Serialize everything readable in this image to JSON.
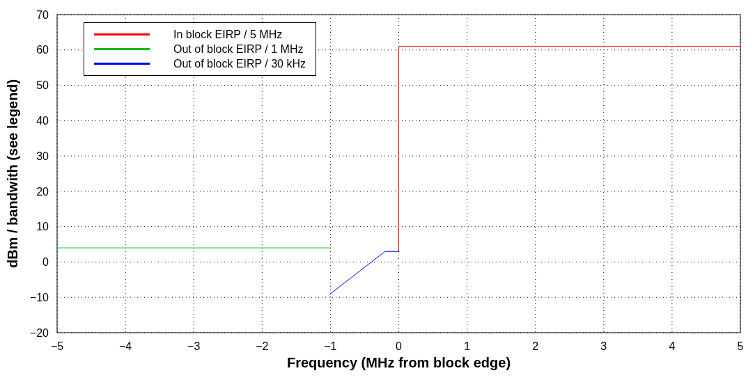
{
  "chart_data": {
    "type": "line",
    "xlabel": "Frequency (MHz from block edge)",
    "ylabel": "dBm / bandwith (see legend)",
    "xlim": [
      -5,
      5
    ],
    "xticks": [
      -5,
      -4,
      -3,
      -2,
      -1,
      0,
      1,
      2,
      3,
      4,
      5
    ],
    "ylim": [
      -20,
      70
    ],
    "yticks": [
      -20,
      -10,
      0,
      10,
      20,
      30,
      40,
      50,
      60,
      70
    ],
    "grid": true,
    "legend": "top left",
    "marker": "none",
    "line_style": "solid",
    "series": [
      {
        "name": "In block EIRP / 5 MHz",
        "color": "#ff0000",
        "x": [
          0,
          0,
          5
        ],
        "values": [
          3,
          61,
          61
        ]
      },
      {
        "name": "Out of block EIRP / 1 MHz",
        "color": "#00c000",
        "x": [
          -5,
          -1
        ],
        "values": [
          4,
          4
        ]
      },
      {
        "name": "Out of block EIRP / 30 kHz",
        "color": "#0000ff",
        "x": [
          -1,
          -0.2,
          0
        ],
        "values": [
          -9,
          3,
          3
        ]
      }
    ]
  }
}
